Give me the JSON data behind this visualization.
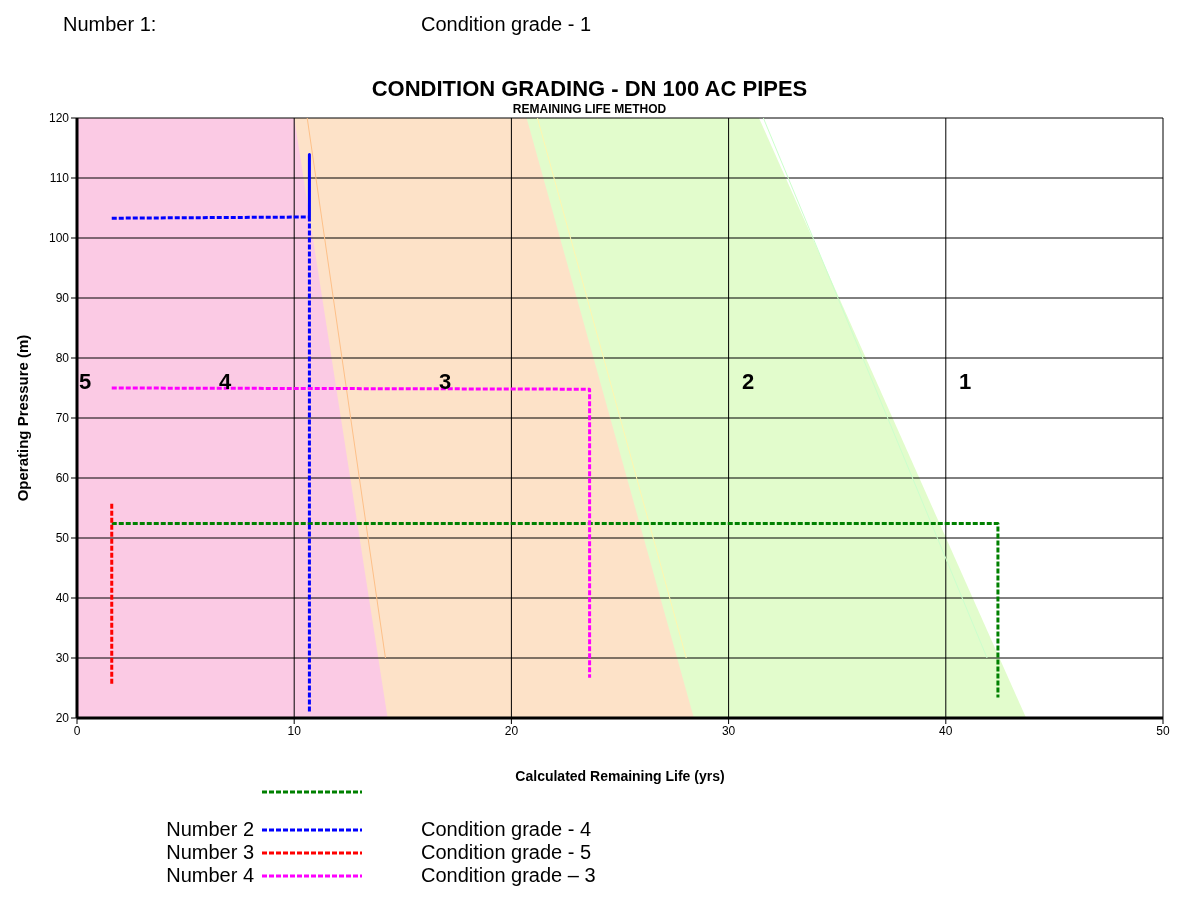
{
  "chart_data": {
    "type": "line",
    "title": "CONDITION GRADING - DN 100 AC PIPES",
    "subtitle": "REMAINING LIFE METHOD",
    "xlabel": "Calculated Remaining Life (yrs)",
    "ylabel": "Operating Pressure (m)",
    "xlim": [
      0,
      50
    ],
    "xticks": [
      0,
      10,
      20,
      30,
      40,
      50
    ],
    "ylim": [
      20,
      120
    ],
    "yticks": [
      20,
      30,
      40,
      50,
      60,
      70,
      80,
      90,
      100,
      110,
      120
    ],
    "grid": true,
    "legend": "bottom",
    "marker": "none",
    "series": [
      {
        "type": "area",
        "color": "#e2fccc",
        "x": [
          0,
          31.4,
          43.7
        ],
        "values": [
          120,
          120,
          20
        ]
      },
      {
        "type": "area",
        "color": "#fde2c8",
        "x": [
          0,
          20.7,
          28.4
        ],
        "values": [
          120,
          120,
          20
        ]
      },
      {
        "type": "area",
        "color": "#fbcae4",
        "x": [
          0,
          10,
          14.3
        ],
        "values": [
          120,
          120,
          20
        ]
      },
      {
        "color": "#fdc088",
        "line_style": "solid",
        "x": [
          10.6,
          14.2
        ],
        "values": [
          120,
          30
        ]
      },
      {
        "color": "#fff7b0",
        "line_style": "solid",
        "x": [
          21.2,
          28.05
        ],
        "values": [
          120,
          30
        ]
      },
      {
        "color": "#ccffcc",
        "line_style": "solid",
        "x": [
          31.6,
          41.9
        ],
        "values": [
          120,
          30
        ]
      },
      {
        "color": "#008000",
        "line_style": "dashed",
        "x": [
          1.6,
          42.4,
          42.4
        ],
        "values": [
          52.4,
          52.4,
          23.4
        ]
      },
      {
        "name": "Number 2",
        "color": "#0000ff",
        "line_style": "dashed",
        "x": [
          1.6,
          10.7,
          10.7,
          10.7
        ],
        "values": [
          103.3,
          103.5,
          113.9,
          20.8
        ]
      },
      {
        "name": "Number 3",
        "color": "#ff0000",
        "line_style": "dashed",
        "x": [
          1.6,
          1.6
        ],
        "values": [
          55.7,
          25.6
        ]
      },
      {
        "name": "Number 4",
        "color": "#ff00ff",
        "line_style": "dashed",
        "x": [
          1.6,
          23.6,
          23.6
        ],
        "values": [
          75,
          74.8,
          26.7
        ]
      }
    ],
    "annotations": [
      "Number 1:",
      "Condition grade - 1",
      "Condition grade - 4",
      "Condition grade - 5",
      "Condition grade – 3",
      "5",
      "4",
      "3",
      "2",
      "1"
    ]
  }
}
